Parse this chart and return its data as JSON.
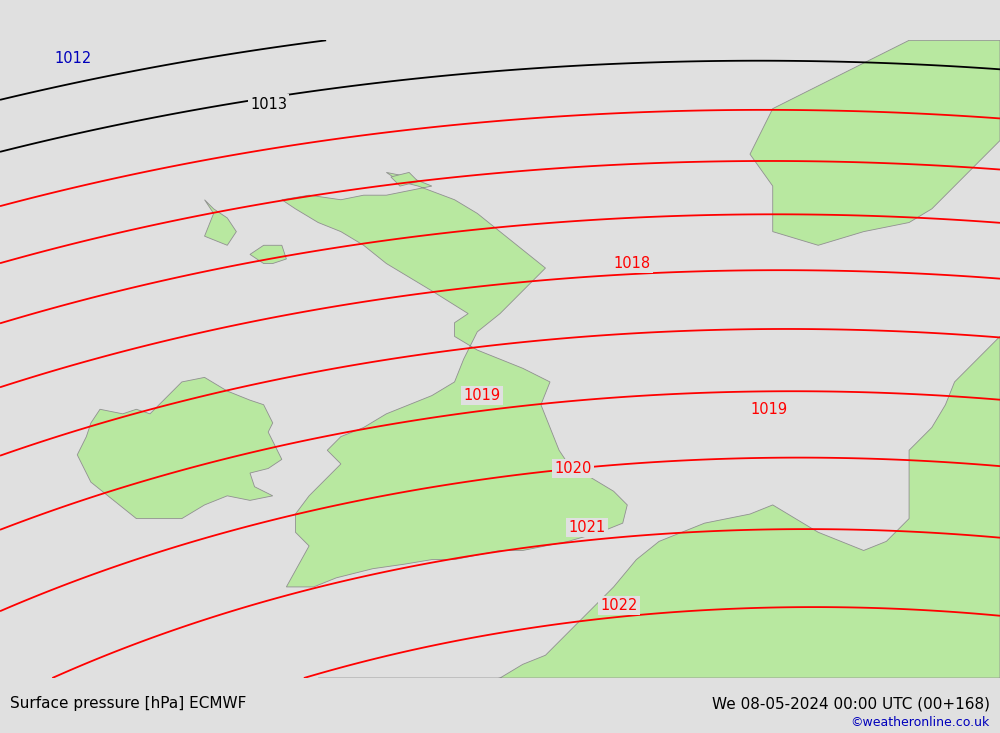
{
  "title_left": "Surface pressure [hPa] ECMWF",
  "title_right": "We 08-05-2024 00:00 UTC (00+168)",
  "watermark": "©weatheronline.co.uk",
  "bg_color": "#e0e0e0",
  "land_color": "#b8e8a0",
  "border_color": "#909090",
  "sea_color": "#e0e0e0",
  "contour_color_red": "#ff0000",
  "contour_color_black": "#000000",
  "contour_color_blue": "#0000bb",
  "figsize": [
    10.0,
    7.33
  ],
  "dpi": 100,
  "xlim": [
    -12.0,
    10.0
  ],
  "ylim": [
    48.0,
    62.0
  ],
  "isobars_black": [
    1012,
    1013
  ],
  "isobars_red": [
    1014,
    1015,
    1016,
    1017,
    1018,
    1019,
    1020,
    1021,
    1022
  ],
  "label_positions": {
    "1012": [
      -10.8,
      61.5,
      "blue"
    ],
    "1013": [
      -6.5,
      60.5,
      "black"
    ],
    "1018": [
      1.5,
      57.0,
      "red"
    ],
    "1019a": [
      -1.8,
      54.1,
      "red"
    ],
    "1019b": [
      4.5,
      53.8,
      "red"
    ],
    "1020": [
      0.2,
      52.5,
      "red"
    ],
    "1021": [
      0.5,
      51.2,
      "red"
    ],
    "1022": [
      1.2,
      49.5,
      "red"
    ]
  }
}
